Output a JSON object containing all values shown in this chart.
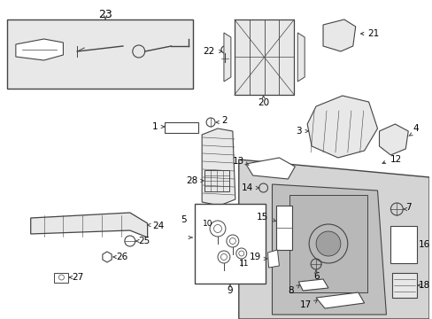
{
  "bg_color": "#ffffff",
  "fig_width": 4.89,
  "fig_height": 3.6,
  "dpi": 100,
  "ec": "#444444",
  "fc_light": "#e8e8e8",
  "fc_white": "#ffffff",
  "fc_gray": "#cccccc"
}
